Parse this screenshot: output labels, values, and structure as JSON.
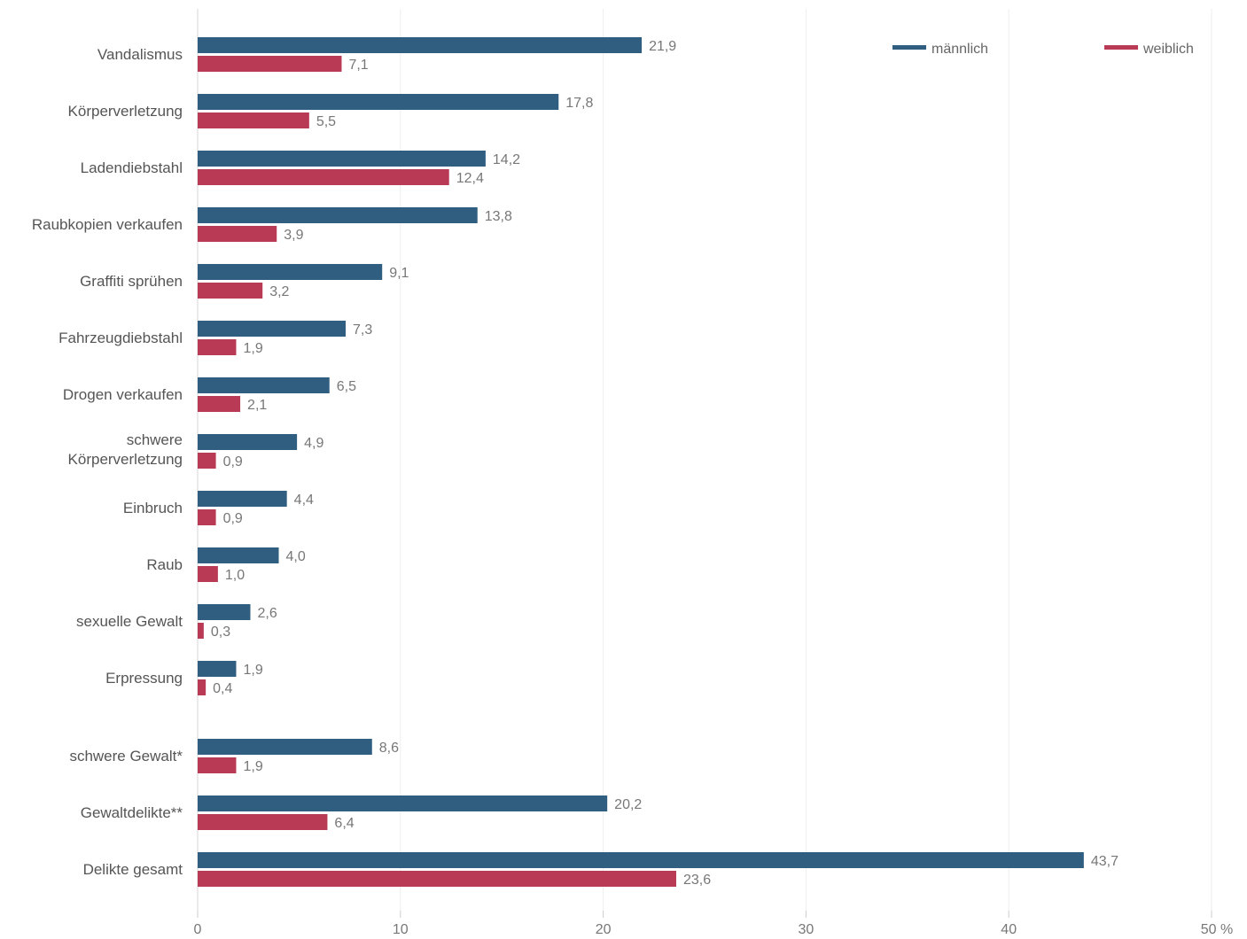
{
  "chart_data": {
    "type": "bar",
    "orientation": "horizontal",
    "title": "",
    "xlabel": "",
    "ylabel": "",
    "xlim": [
      0,
      50
    ],
    "unit": "%",
    "grid": true,
    "legend_position": "top-right",
    "categories": [
      "Vandalismus",
      "Körperverletzung",
      "Ladendiebstahl",
      "Raubkopien verkaufen",
      "Graffiti sprühen",
      "Fahrzeugdiebstahl",
      "Drogen verkaufen",
      "schwere Körperverletzung",
      "Einbruch",
      "Raub",
      "sexuelle Gewalt",
      "Erpressung",
      "schwere Gewalt*",
      "Gewaltdelikte**",
      "Delikte gesamt"
    ],
    "category_lines": [
      [
        "Vandalismus"
      ],
      [
        "Körperverletzung"
      ],
      [
        "Ladendiebstahl"
      ],
      [
        "Raubkopien verkaufen"
      ],
      [
        "Graffiti sprühen"
      ],
      [
        "Fahrzeugdiebstahl"
      ],
      [
        "Drogen verkaufen"
      ],
      [
        "schwere",
        "Körperverletzung"
      ],
      [
        "Einbruch"
      ],
      [
        "Raub"
      ],
      [
        "sexuelle Gewalt"
      ],
      [
        "Erpressung"
      ],
      [
        "schwere Gewalt*"
      ],
      [
        "Gewaltdelikte**"
      ],
      [
        "Delikte gesamt"
      ]
    ],
    "series": [
      {
        "name": "männlich",
        "color": "#2f5e80",
        "values": [
          21.9,
          17.8,
          14.2,
          13.8,
          9.1,
          7.3,
          6.5,
          4.9,
          4.4,
          4.0,
          2.6,
          1.9,
          8.6,
          20.2,
          43.7
        ],
        "labels": [
          "21,9",
          "17,8",
          "14,2",
          "13,8",
          "9,1",
          "7,3",
          "6,5",
          "4,9",
          "4,4",
          "4,0",
          "2,6",
          "1,9",
          "8,6",
          "20,2",
          "43,7"
        ]
      },
      {
        "name": "weiblich",
        "color": "#b83a55",
        "values": [
          7.1,
          5.5,
          12.4,
          3.9,
          3.2,
          1.9,
          2.1,
          0.9,
          0.9,
          1.0,
          0.3,
          0.4,
          1.9,
          6.4,
          23.6
        ],
        "labels": [
          "7,1",
          "5,5",
          "12,4",
          "3,9",
          "3,2",
          "1,9",
          "2,1",
          "0,9",
          "0,9",
          "1,0",
          "0,3",
          "0,4",
          "1,9",
          "6,4",
          "23,6"
        ]
      }
    ],
    "ticks": [
      0,
      10,
      20,
      30,
      40,
      50
    ],
    "tick_labels": [
      "0",
      "10",
      "20",
      "30",
      "40",
      "50 %"
    ]
  }
}
